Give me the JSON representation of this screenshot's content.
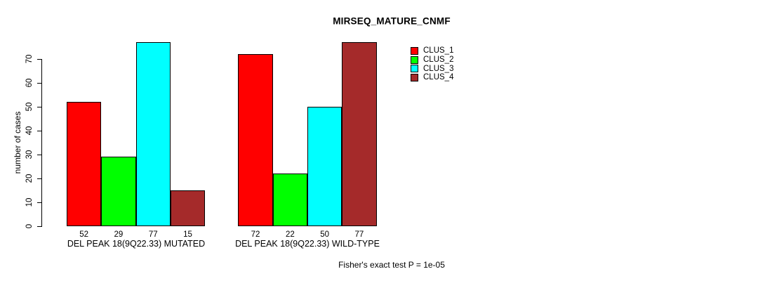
{
  "chart_data": {
    "type": "bar",
    "title": "MIRSEQ_MATURE_CNMF",
    "ylabel": "number of cases",
    "xlabel": "",
    "yticks": [
      0,
      10,
      20,
      30,
      40,
      50,
      60,
      70
    ],
    "ylim": [
      0,
      77
    ],
    "grid": false,
    "legend_position": "top-right-inside",
    "series": [
      {
        "name": "CLUS_1",
        "color": "#FF0000"
      },
      {
        "name": "CLUS_2",
        "color": "#00FF00"
      },
      {
        "name": "CLUS_3",
        "color": "#00FFFF"
      },
      {
        "name": "CLUS_4",
        "color": "#A52A2A"
      }
    ],
    "groups": [
      {
        "label": "DEL PEAK 18(9Q22.33) MUTATED",
        "values": [
          52,
          29,
          77,
          15
        ]
      },
      {
        "label": "DEL PEAK 18(9Q22.33) WILD-TYPE",
        "values": [
          72,
          22,
          50,
          77
        ]
      }
    ],
    "footnote": "Fisher's exact test P = 1e-05"
  }
}
